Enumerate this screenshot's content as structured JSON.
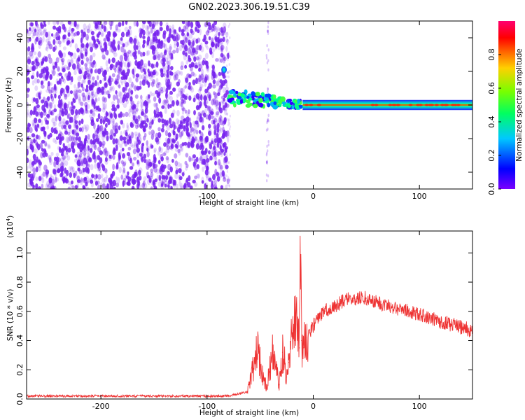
{
  "title": "GN02.2023.306.19.51.C39",
  "colors": {
    "trace": "#ee3333",
    "sparse_purple": "#7722ee",
    "colorbar_stops": [
      "#7a00ff",
      "#0000ff",
      "#00c8ff",
      "#00ff60",
      "#78ff00",
      "#ffd000",
      "#ff6000",
      "#ff0000",
      "#ff0070"
    ]
  },
  "chart_data": [
    {
      "type": "heatmap",
      "xlabel": "Height of straight line (km)",
      "ylabel": "Frequency (Hz)",
      "xlim": [
        -270,
        150
      ],
      "ylim": [
        -50,
        50
      ],
      "x_ticks": [
        -200,
        -100,
        0,
        100
      ],
      "y_ticks": [
        -40,
        -20,
        0,
        20,
        40
      ],
      "colorbar": {
        "label": "Normalized spectral amplitude",
        "range": [
          0,
          1
        ],
        "ticks": [
          "0.0",
          "0.2",
          "0.4",
          "0.6",
          "0.8"
        ]
      },
      "regions": [
        {
          "kind": "scattered-noise",
          "x": [
            -270,
            -80
          ],
          "y": [
            -50,
            50
          ],
          "amplitude": 0.05
        },
        {
          "kind": "sparse-column",
          "x": [
            -44,
            -42
          ],
          "y": [
            -50,
            50
          ],
          "amplitude": 0.03
        },
        {
          "kind": "band-onset",
          "x": [
            -80,
            -10
          ],
          "center_y": [
            21,
            0
          ],
          "amplitude": 0.4
        },
        {
          "kind": "steady-band",
          "x": [
            -10,
            150
          ],
          "center_y": 0,
          "half_width": 3,
          "amplitude": 0.85
        }
      ]
    },
    {
      "type": "line",
      "xlabel": "Height of straight line (km)",
      "ylabel": "SNR (10 * v/v)",
      "yscale_label": "(x10",
      "yscale_exp": "4",
      "yscale_close": ")",
      "xlim": [
        -270,
        150
      ],
      "ylim": [
        0,
        1.15
      ],
      "x_ticks": [
        -200,
        -100,
        0,
        100
      ],
      "y_ticks": [
        "0.0",
        "0.2",
        "0.4",
        "0.6",
        "0.8",
        "1.0"
      ],
      "series": [
        {
          "x": [
            -270,
            -200,
            -120,
            -80,
            -62,
            -57,
            -52,
            -50,
            -47,
            -44,
            -41,
            -38,
            -35,
            -32,
            -29,
            -27,
            -25,
            -23,
            -20,
            -17,
            -15,
            -13,
            -12,
            -11,
            -9,
            -6,
            -3,
            0,
            5,
            10,
            20,
            30,
            40,
            50,
            60,
            70,
            80,
            100,
            120,
            150
          ],
          "y": [
            0.02,
            0.02,
            0.02,
            0.02,
            0.05,
            0.2,
            0.35,
            0.25,
            0.15,
            0.08,
            0.2,
            0.34,
            0.2,
            0.1,
            0.32,
            0.25,
            0.15,
            0.25,
            0.45,
            0.65,
            0.5,
            0.35,
            1.15,
            0.4,
            0.35,
            0.42,
            0.45,
            0.5,
            0.55,
            0.6,
            0.63,
            0.68,
            0.69,
            0.69,
            0.66,
            0.64,
            0.62,
            0.58,
            0.53,
            0.47
          ]
        }
      ]
    }
  ]
}
